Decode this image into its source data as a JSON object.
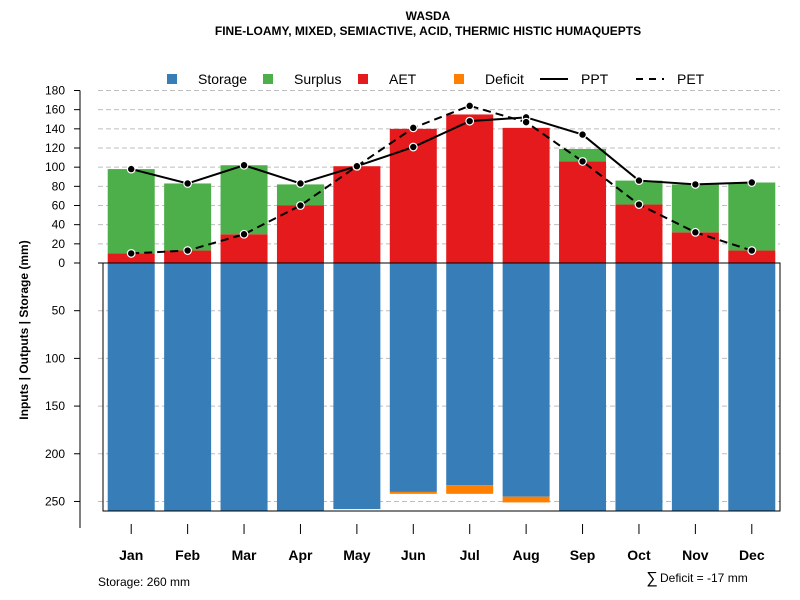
{
  "chart_data": {
    "type": "bar",
    "title": "WASDA",
    "subtitle": "FINE-LOAMY, MIXED, SEMIACTIVE, ACID, THERMIC HISTIC HUMAQUEPTS",
    "ylabel": "Inputs | Outputs | Storage     (mm)",
    "categories": [
      "Jan",
      "Feb",
      "Mar",
      "Apr",
      "May",
      "Jun",
      "Jul",
      "Aug",
      "Sep",
      "Oct",
      "Nov",
      "Dec"
    ],
    "ylim_top": [
      0,
      180
    ],
    "yticks_top": [
      0,
      20,
      40,
      60,
      80,
      100,
      120,
      140,
      160,
      180
    ],
    "ylim_bottom": [
      0,
      260
    ],
    "yticks_bottom": [
      50,
      100,
      150,
      200,
      250
    ],
    "series": [
      {
        "name": "Storage",
        "color": "#377EB8",
        "values": [
          260,
          260,
          260,
          260,
          258,
          240,
          233,
          245,
          260,
          260,
          260,
          260
        ]
      },
      {
        "name": "Surplus",
        "color": "#4DAF4A",
        "values": [
          88,
          70,
          72,
          22,
          0,
          0,
          0,
          0,
          13,
          25,
          50,
          71
        ]
      },
      {
        "name": "AET",
        "color": "#E41A1C",
        "values": [
          10,
          13,
          30,
          60,
          101,
          140,
          155,
          141,
          106,
          61,
          32,
          13
        ]
      },
      {
        "name": "Deficit",
        "color": "#FF7F00",
        "values": [
          0,
          0,
          0,
          0,
          0,
          2,
          9,
          6,
          0,
          0,
          0,
          0
        ]
      },
      {
        "name": "PPT",
        "color": "#000000",
        "line": "solid",
        "values": [
          98,
          83,
          102,
          83,
          101,
          121,
          148,
          152,
          134,
          86,
          82,
          84
        ]
      },
      {
        "name": "PET",
        "color": "#000000",
        "line": "dashed",
        "values": [
          10,
          13,
          30,
          60,
          101,
          141,
          164,
          147,
          106,
          61,
          32,
          13
        ]
      }
    ],
    "legend_position": "top",
    "grid": true
  },
  "footer": {
    "storage": "Storage: 260 mm",
    "deficit_symbol": "∑",
    "deficit": "Deficit = -17 mm"
  }
}
